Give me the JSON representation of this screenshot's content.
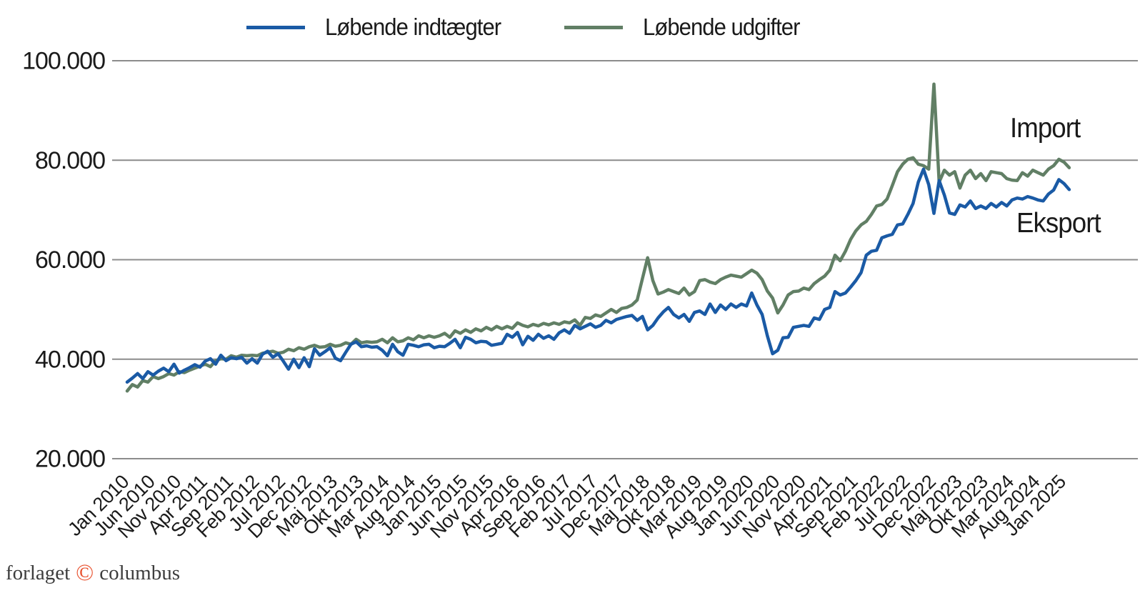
{
  "page": {
    "background": "#ffffff"
  },
  "legend": {
    "items": [
      {
        "label": "Løbende indtægter",
        "color": "#1a5aa5"
      },
      {
        "label": "Løbende udgifter",
        "color": "#617f65"
      }
    ]
  },
  "annotations": {
    "import": "Import",
    "eksport": "Eksport"
  },
  "footer": {
    "prefix": "forlaget",
    "copyright_symbol": "©",
    "suffix": "columbus",
    "copyright_color": "#e8512e"
  },
  "chart_data": {
    "type": "line",
    "title": "",
    "xlabel": "",
    "ylabel": "",
    "x_start": "Jan 2010",
    "x_end": "Feb 2025",
    "x_frequency": "monthly",
    "x_tick_labels": [
      "Jan 2010",
      "Jun 2010",
      "Nov 2010",
      "Apr 2011",
      "Sep 2011",
      "Feb 2012",
      "Jul 2012",
      "Dec 2012",
      "Maj 2013",
      "Okt 2013",
      "Mar 2014",
      "Aug 2014",
      "Jan 2015",
      "Jun 2015",
      "Nov 2015",
      "Apr 2016",
      "Sep 2016",
      "Feb 2017",
      "Jul 2017",
      "Dec 2017",
      "Maj 2018",
      "Okt 2018",
      "Mar 2019",
      "Aug 2019",
      "Jan 2020",
      "Jun 2020",
      "Nov 2020",
      "Apr 2021",
      "Sep 2021",
      "Feb 2022",
      "Jul 2022",
      "Dec 2022",
      "Maj 2023",
      "Okt 2023",
      "Mar 2024",
      "Aug 2024",
      "Jan 2025"
    ],
    "x_tick_every_n_months": 5,
    "y_tick_labels": [
      "100.000",
      "80.000",
      "60.000",
      "40.000",
      "20.000"
    ],
    "ylim": [
      20000,
      100000
    ],
    "grid": "horizontal",
    "gridline_color": "#8c8c8c",
    "legend_position": "top",
    "series": [
      {
        "name": "Løbende udgifter",
        "annotation": "Import",
        "color": "#617f65",
        "values": [
          33600,
          34900,
          34400,
          35700,
          35400,
          36500,
          36100,
          36500,
          37100,
          36800,
          37500,
          37300,
          37800,
          38200,
          38600,
          39000,
          38500,
          39700,
          40100,
          40000,
          40700,
          40400,
          40800,
          40700,
          40800,
          40700,
          41200,
          41400,
          41600,
          41200,
          41400,
          42000,
          41700,
          42300,
          42000,
          42500,
          42800,
          42400,
          42500,
          43000,
          42600,
          42800,
          43300,
          43000,
          44000,
          43300,
          43500,
          43400,
          43500,
          44000,
          43300,
          44300,
          43500,
          43700,
          44300,
          43900,
          44700,
          44300,
          44700,
          44400,
          44700,
          45200,
          44400,
          45700,
          45200,
          45900,
          45400,
          46100,
          45700,
          46400,
          45900,
          46600,
          46100,
          46600,
          46200,
          47300,
          46800,
          46500,
          47000,
          46700,
          47200,
          46900,
          47300,
          47000,
          47500,
          47300,
          47900,
          46800,
          48400,
          48200,
          48900,
          48600,
          49300,
          50000,
          49400,
          50200,
          50400,
          50900,
          51900,
          56200,
          60400,
          55800,
          53100,
          53500,
          54000,
          53600,
          53200,
          54300,
          52900,
          53600,
          55800,
          56000,
          55500,
          55200,
          56000,
          56500,
          56900,
          56700,
          56500,
          57200,
          57900,
          57300,
          56000,
          53700,
          52300,
          49300,
          50900,
          52900,
          53600,
          53700,
          54300,
          54000,
          55200,
          56000,
          56700,
          57900,
          60900,
          59800,
          61700,
          64100,
          65800,
          67000,
          67700,
          69100,
          70800,
          71100,
          72200,
          74900,
          77700,
          79200,
          80200,
          80500,
          79200,
          78900,
          78200,
          95300,
          75600,
          78000,
          77000,
          77700,
          74400,
          77000,
          78000,
          76300,
          77300,
          75900,
          77700,
          77500,
          77300,
          76300,
          76000,
          75900,
          77500,
          76800,
          78000,
          77500,
          77000,
          78200,
          78900,
          80200,
          79600,
          78500
        ]
      },
      {
        "name": "Løbende indtægter",
        "annotation": "Eksport",
        "color": "#1a5aa5",
        "values": [
          35400,
          36200,
          37100,
          36100,
          37500,
          36800,
          37600,
          38200,
          37500,
          39000,
          37200,
          37800,
          38300,
          38900,
          38400,
          39600,
          40100,
          39000,
          40800,
          39700,
          40300,
          40100,
          40400,
          39200,
          40100,
          39200,
          41000,
          41600,
          40400,
          41100,
          39600,
          38000,
          40000,
          38300,
          40300,
          38500,
          42100,
          40800,
          41500,
          42300,
          40200,
          39700,
          41400,
          43000,
          43500,
          42500,
          42700,
          42400,
          42500,
          41800,
          40700,
          43000,
          41500,
          40800,
          43000,
          42800,
          42500,
          42900,
          43000,
          42300,
          42600,
          42500,
          43200,
          44000,
          42300,
          44400,
          44000,
          43300,
          43600,
          43500,
          42800,
          43000,
          43200,
          45000,
          44400,
          45400,
          42900,
          44600,
          43800,
          45000,
          44200,
          44700,
          44000,
          45300,
          45900,
          45200,
          46800,
          46100,
          46600,
          47100,
          46400,
          46800,
          47800,
          47300,
          48000,
          48300,
          48600,
          48800,
          47800,
          48600,
          45900,
          46800,
          48300,
          49500,
          50400,
          49000,
          48300,
          49000,
          47600,
          49400,
          49700,
          49000,
          51100,
          49400,
          50900,
          50000,
          51100,
          50400,
          51100,
          50700,
          53300,
          50900,
          49000,
          44700,
          41100,
          41800,
          44300,
          44400,
          46400,
          46600,
          46800,
          46600,
          48300,
          48000,
          50000,
          50400,
          53600,
          52900,
          53300,
          54500,
          55800,
          57400,
          60900,
          61700,
          61900,
          64400,
          64800,
          65100,
          67000,
          67200,
          69100,
          71300,
          75600,
          78200,
          75100,
          69300,
          75900,
          73000,
          69400,
          69100,
          71000,
          70600,
          71800,
          70300,
          70800,
          70300,
          71300,
          70600,
          71500,
          70800,
          72000,
          72400,
          72200,
          72700,
          72400,
          72000,
          71800,
          73200,
          74000,
          76100,
          75300,
          74100
        ]
      }
    ]
  }
}
